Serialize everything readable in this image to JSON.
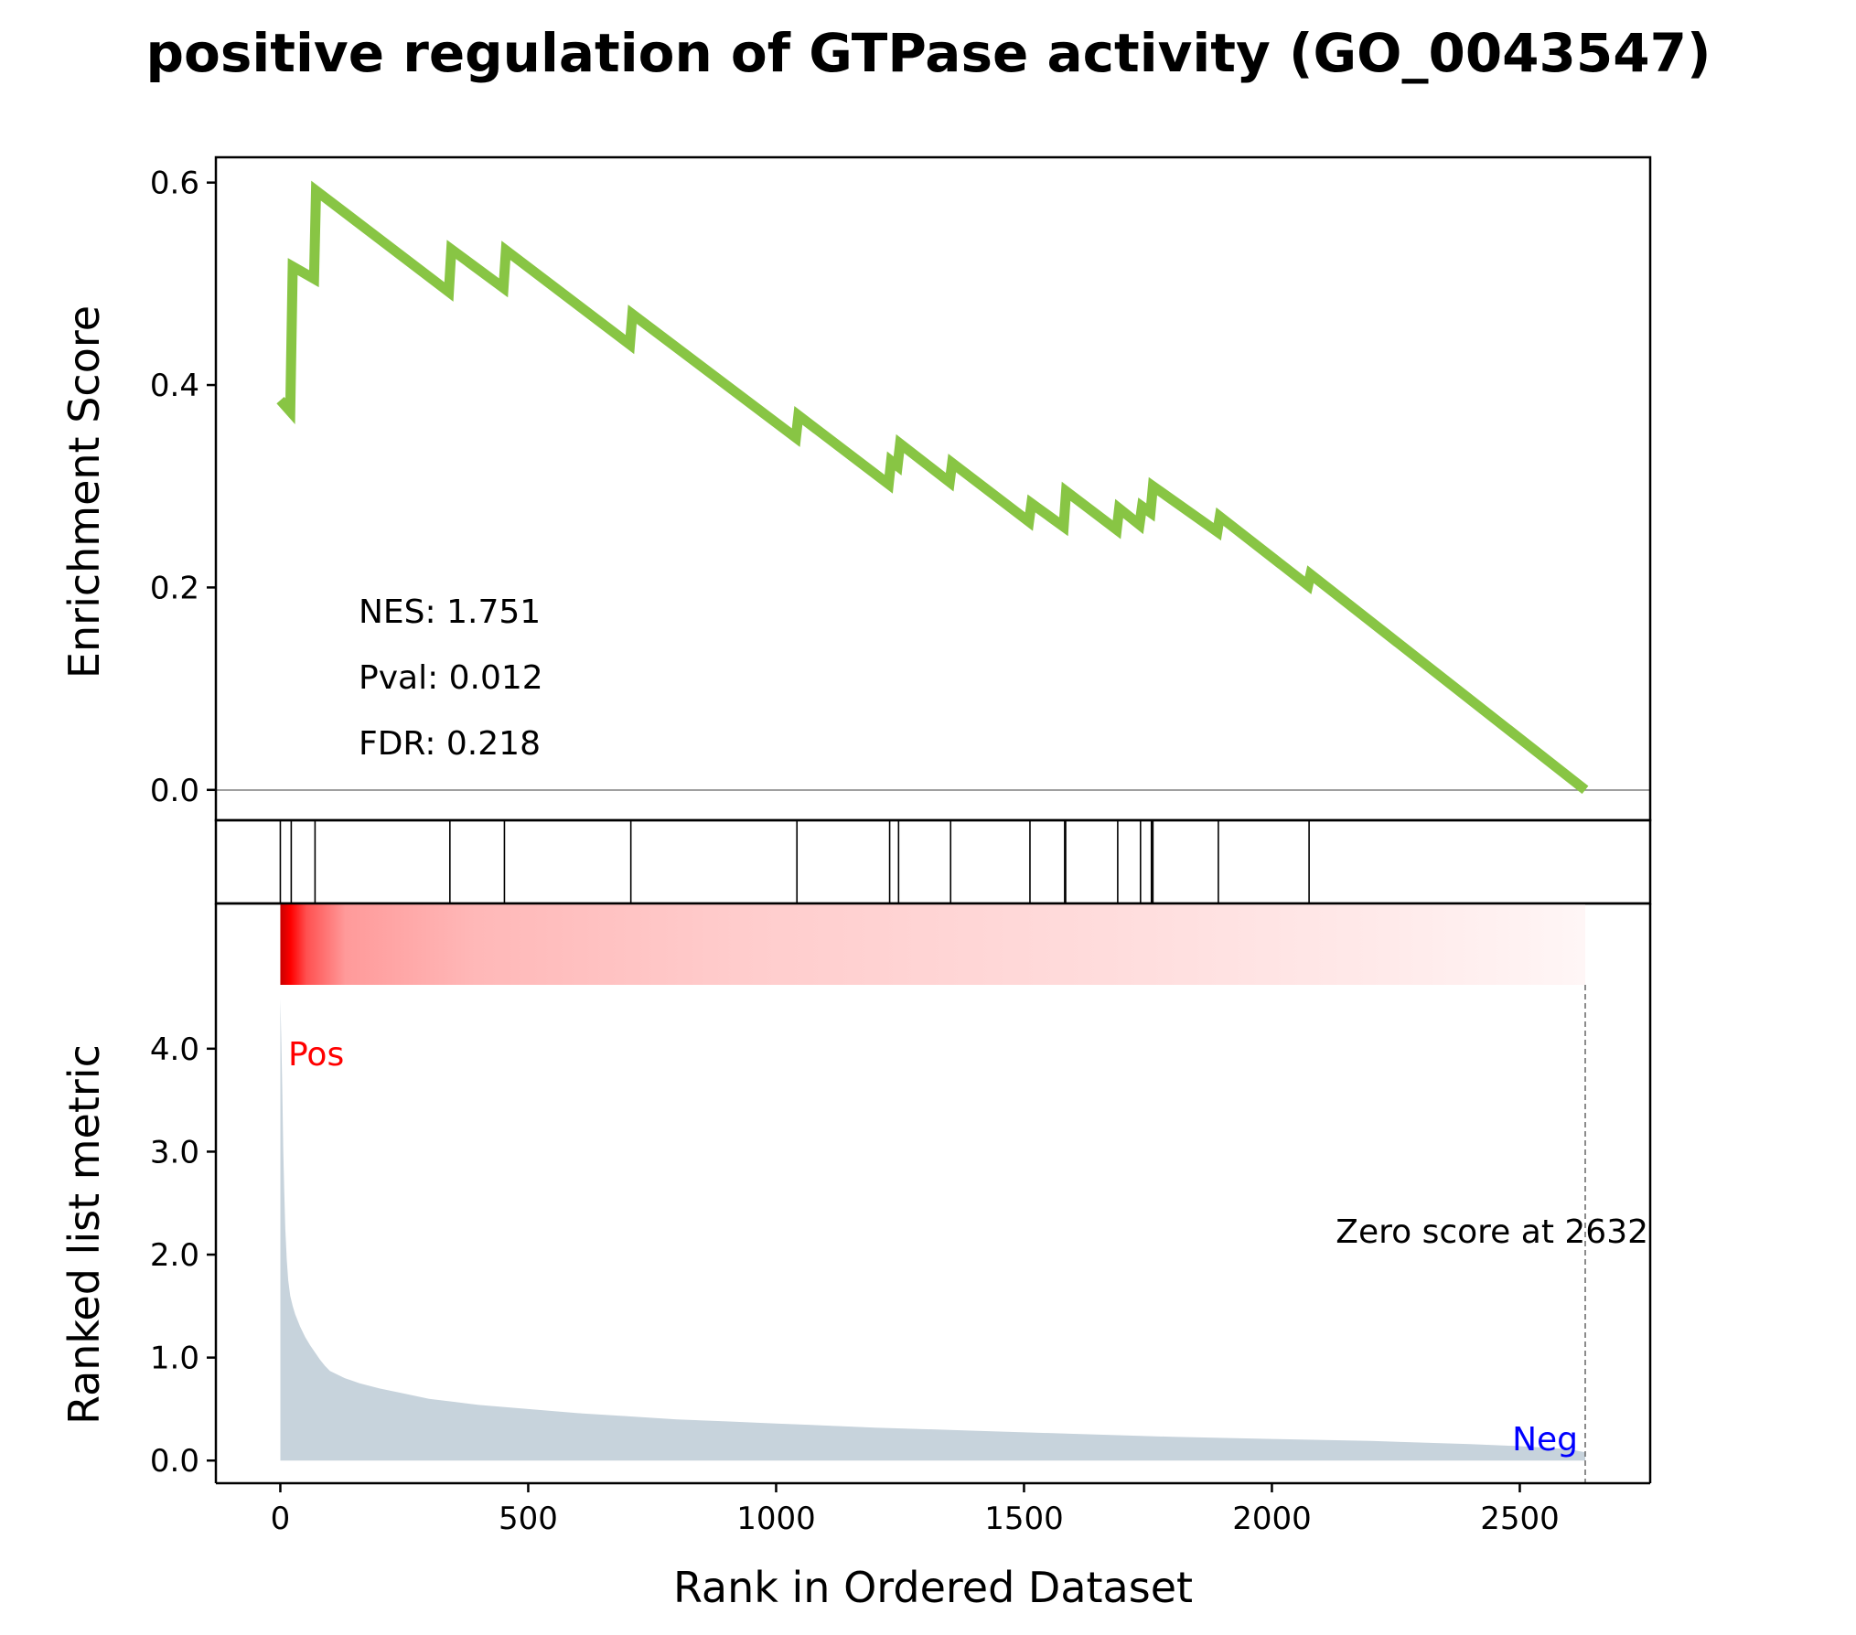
{
  "title": "positive regulation of GTPase activity (GO_0043547)",
  "colors": {
    "es_line": "#88C544",
    "ranked_fill": "#C7D3DC",
    "heat": "#FF0000",
    "pos": "#FF0000",
    "neg": "#0000FF"
  },
  "chart_data": [
    {
      "type": "line",
      "panel": "enrichment",
      "ylabel": "Enrichment Score",
      "xlim": [
        -130,
        2763
      ],
      "ylim": [
        -0.03,
        0.625
      ],
      "yticks": [
        0.0,
        0.2,
        0.4,
        0.6
      ],
      "ytick_labels": [
        "0.0",
        "0.2",
        "0.4",
        "0.6"
      ],
      "grid": false,
      "zero_line": 0.0,
      "series": [
        {
          "x": [
            0,
            20,
            20,
            25,
            25,
            68,
            68,
            72,
            72,
            340,
            340,
            345,
            345,
            450,
            450,
            455,
            455,
            705,
            705,
            710,
            710,
            1040,
            1040,
            1045,
            1045,
            1227,
            1227,
            1232,
            1232,
            1245,
            1245,
            1250,
            1250,
            1350,
            1350,
            1355,
            1355,
            1510,
            1510,
            1515,
            1515,
            1580,
            1580,
            1585,
            1585,
            1687,
            1687,
            1692,
            1692,
            1733,
            1733,
            1738,
            1738,
            1755,
            1755,
            1760,
            1760,
            1890,
            1890,
            1895,
            1895,
            2073,
            2073,
            2078,
            2078,
            2632
          ],
          "y": [
            0.385,
            0.374,
            0.374,
            0.517,
            0.517,
            0.505,
            0.505,
            0.592,
            0.592,
            0.492,
            0.492,
            0.534,
            0.534,
            0.496,
            0.496,
            0.533,
            0.533,
            0.44,
            0.44,
            0.47,
            0.47,
            0.348,
            0.348,
            0.37,
            0.37,
            0.302,
            0.302,
            0.325,
            0.325,
            0.32,
            0.32,
            0.342,
            0.342,
            0.304,
            0.304,
            0.323,
            0.323,
            0.265,
            0.265,
            0.283,
            0.283,
            0.26,
            0.26,
            0.295,
            0.295,
            0.257,
            0.257,
            0.278,
            0.278,
            0.262,
            0.262,
            0.28,
            0.28,
            0.274,
            0.274,
            0.3,
            0.3,
            0.255,
            0.255,
            0.27,
            0.27,
            0.202,
            0.202,
            0.213,
            0.213,
            0.0
          ]
        }
      ],
      "annotations": [
        "NES: 1.751",
        "Pval: 0.012",
        "FDR: 0.218"
      ]
    },
    {
      "type": "hits",
      "panel": "hits",
      "xlim": [
        -130,
        2763
      ],
      "hits": [
        0,
        22,
        70,
        342,
        452,
        707,
        1042,
        1229,
        1247,
        1352,
        1512,
        1582,
        1584,
        1689,
        1735,
        1757,
        1760,
        1892,
        2075
      ]
    },
    {
      "type": "heatmap",
      "panel": "heatmap",
      "xlim": [
        -130,
        2763
      ],
      "range": [
        0,
        2632
      ]
    },
    {
      "type": "area",
      "panel": "ranked",
      "ylabel": "Ranked list metric",
      "xlabel": "Rank in Ordered Dataset",
      "xlim": [
        -130,
        2763
      ],
      "ylim": [
        -0.22,
        4.62
      ],
      "xticks": [
        0,
        500,
        1000,
        1500,
        2000,
        2500
      ],
      "xtick_labels": [
        "0",
        "500",
        "1000",
        "1500",
        "2000",
        "2500"
      ],
      "yticks": [
        0.0,
        1.0,
        2.0,
        3.0,
        4.0
      ],
      "ytick_labels": [
        "0.0",
        "1.0",
        "2.0",
        "3.0",
        "4.0"
      ],
      "grid": false,
      "x": [
        0,
        2,
        4,
        6,
        8,
        10,
        13,
        16,
        20,
        25,
        30,
        40,
        50,
        60,
        70,
        80,
        90,
        100,
        130,
        160,
        200,
        250,
        300,
        350,
        400,
        500,
        600,
        700,
        800,
        900,
        1000,
        1200,
        1400,
        1600,
        1800,
        2000,
        2200,
        2400,
        2500,
        2600,
        2632
      ],
      "values": [
        4.48,
        4.1,
        3.6,
        3.0,
        2.6,
        2.25,
        1.95,
        1.75,
        1.6,
        1.5,
        1.42,
        1.3,
        1.2,
        1.12,
        1.05,
        0.98,
        0.92,
        0.87,
        0.8,
        0.75,
        0.7,
        0.65,
        0.6,
        0.57,
        0.54,
        0.5,
        0.46,
        0.43,
        0.4,
        0.38,
        0.36,
        0.32,
        0.29,
        0.26,
        0.23,
        0.21,
        0.19,
        0.16,
        0.14,
        0.11,
        0.08
      ],
      "zero_score_rank": 2632,
      "zero_score_label": "Zero score at 2632",
      "pos_label": "Pos",
      "neg_label": "Neg"
    }
  ]
}
